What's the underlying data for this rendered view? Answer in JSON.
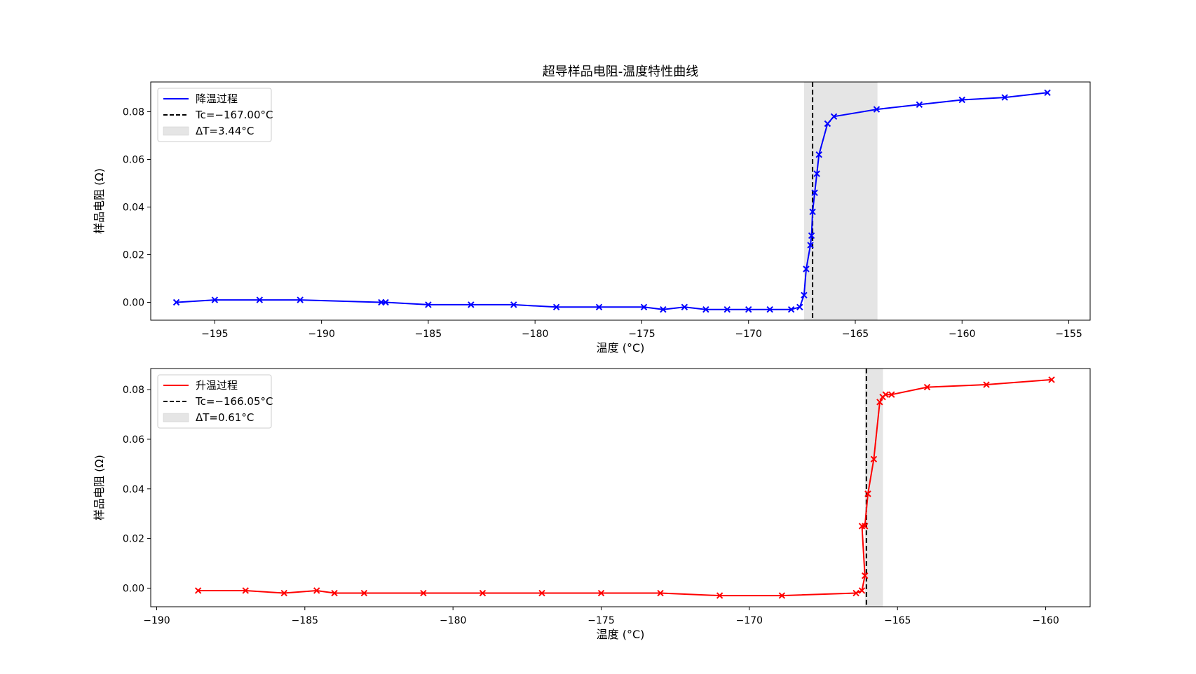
{
  "figure": {
    "title": "超导样品电阻-温度特性曲线"
  },
  "chart_data": [
    {
      "type": "line",
      "title": "超导样品电阻-温度特性曲线",
      "xlabel": "温度 (°C)",
      "ylabel": "样品电阻 (Ω)",
      "xlim": [
        -198,
        -154
      ],
      "ylim": [
        -0.0075,
        0.0925
      ],
      "xticks": [
        -195,
        -190,
        -185,
        -180,
        -175,
        -170,
        -165,
        -160,
        -155
      ],
      "xtick_labels": [
        "−195",
        "−190",
        "−185",
        "−180",
        "−175",
        "−170",
        "−165",
        "−160",
        "−155"
      ],
      "yticks": [
        0.0,
        0.02,
        0.04,
        0.06,
        0.08
      ],
      "ytick_labels": [
        "0.00",
        "0.02",
        "0.04",
        "0.06",
        "0.08"
      ],
      "grid": false,
      "legend_position": "upper-left",
      "legend": [
        "降温过程",
        "Tc=−167.00°C",
        "ΔT=3.44°C"
      ],
      "series": [
        {
          "name": "降温过程",
          "color": "#0000ff",
          "marker": "x",
          "x": [
            -196.8,
            -195.0,
            -192.9,
            -191.0,
            -187.2,
            -187.0,
            -185.0,
            -183.0,
            -181.0,
            -179.0,
            -177.0,
            -174.9,
            -174.0,
            -173.0,
            -172.0,
            -171.0,
            -170.0,
            -169.0,
            -168.0,
            -167.6,
            -167.4,
            -167.3,
            -167.1,
            -167.05,
            -167.0,
            -166.9,
            -166.8,
            -166.7,
            -166.3,
            -166.0,
            -164.0,
            -162.0,
            -160.0,
            -158.0,
            -156.0
          ],
          "y": [
            0.0,
            0.001,
            0.001,
            0.001,
            0.0,
            0.0,
            -0.001,
            -0.001,
            -0.001,
            -0.002,
            -0.002,
            -0.002,
            -0.003,
            -0.002,
            -0.003,
            -0.003,
            -0.003,
            -0.003,
            -0.003,
            -0.002,
            0.003,
            0.014,
            0.024,
            0.028,
            0.038,
            0.046,
            0.054,
            0.062,
            0.075,
            0.078,
            0.081,
            0.083,
            0.085,
            0.086,
            0.088
          ]
        }
      ],
      "vline": {
        "x": -167.0,
        "color": "#000000",
        "style": "dashed"
      },
      "band": {
        "x0": -167.4,
        "x1": -163.96,
        "color": "#e5e5e5"
      }
    },
    {
      "type": "line",
      "title": "",
      "xlabel": "温度 (°C)",
      "ylabel": "样品电阻 (Ω)",
      "xlim": [
        -190.2,
        -158.5
      ],
      "ylim": [
        -0.0075,
        0.0885
      ],
      "xticks": [
        -190,
        -185,
        -180,
        -175,
        -170,
        -165,
        -160
      ],
      "xtick_labels": [
        "−190",
        "−185",
        "−180",
        "−175",
        "−170",
        "−165",
        "−160"
      ],
      "yticks": [
        0.0,
        0.02,
        0.04,
        0.06,
        0.08
      ],
      "ytick_labels": [
        "0.00",
        "0.02",
        "0.04",
        "0.06",
        "0.08"
      ],
      "grid": false,
      "legend_position": "upper-left",
      "legend": [
        "升温过程",
        "Tc=−166.05°C",
        "ΔT=0.61°C"
      ],
      "series": [
        {
          "name": "升温过程",
          "color": "#ff0000",
          "marker": "x",
          "x": [
            -188.6,
            -187.0,
            -185.7,
            -184.6,
            -184.0,
            -183.0,
            -181.0,
            -179.0,
            -177.0,
            -175.0,
            -173.0,
            -171.0,
            -168.9,
            -166.4,
            -166.2,
            -166.1,
            -166.2,
            -166.1,
            -166.0,
            -165.8,
            -165.6,
            -165.5,
            -165.4,
            -165.2,
            -164.0,
            -162.0,
            -159.8
          ],
          "y": [
            -0.001,
            -0.001,
            -0.002,
            -0.001,
            -0.002,
            -0.002,
            -0.002,
            -0.002,
            -0.002,
            -0.002,
            -0.002,
            -0.003,
            -0.003,
            -0.002,
            -0.001,
            0.005,
            0.025,
            0.025,
            0.038,
            0.052,
            0.075,
            0.077,
            0.078,
            0.078,
            0.081,
            0.082,
            0.084
          ]
        }
      ],
      "vline": {
        "x": -166.05,
        "color": "#000000",
        "style": "dashed"
      },
      "band": {
        "x0": -166.1,
        "x1": -165.49,
        "color": "#e5e5e5"
      }
    }
  ]
}
